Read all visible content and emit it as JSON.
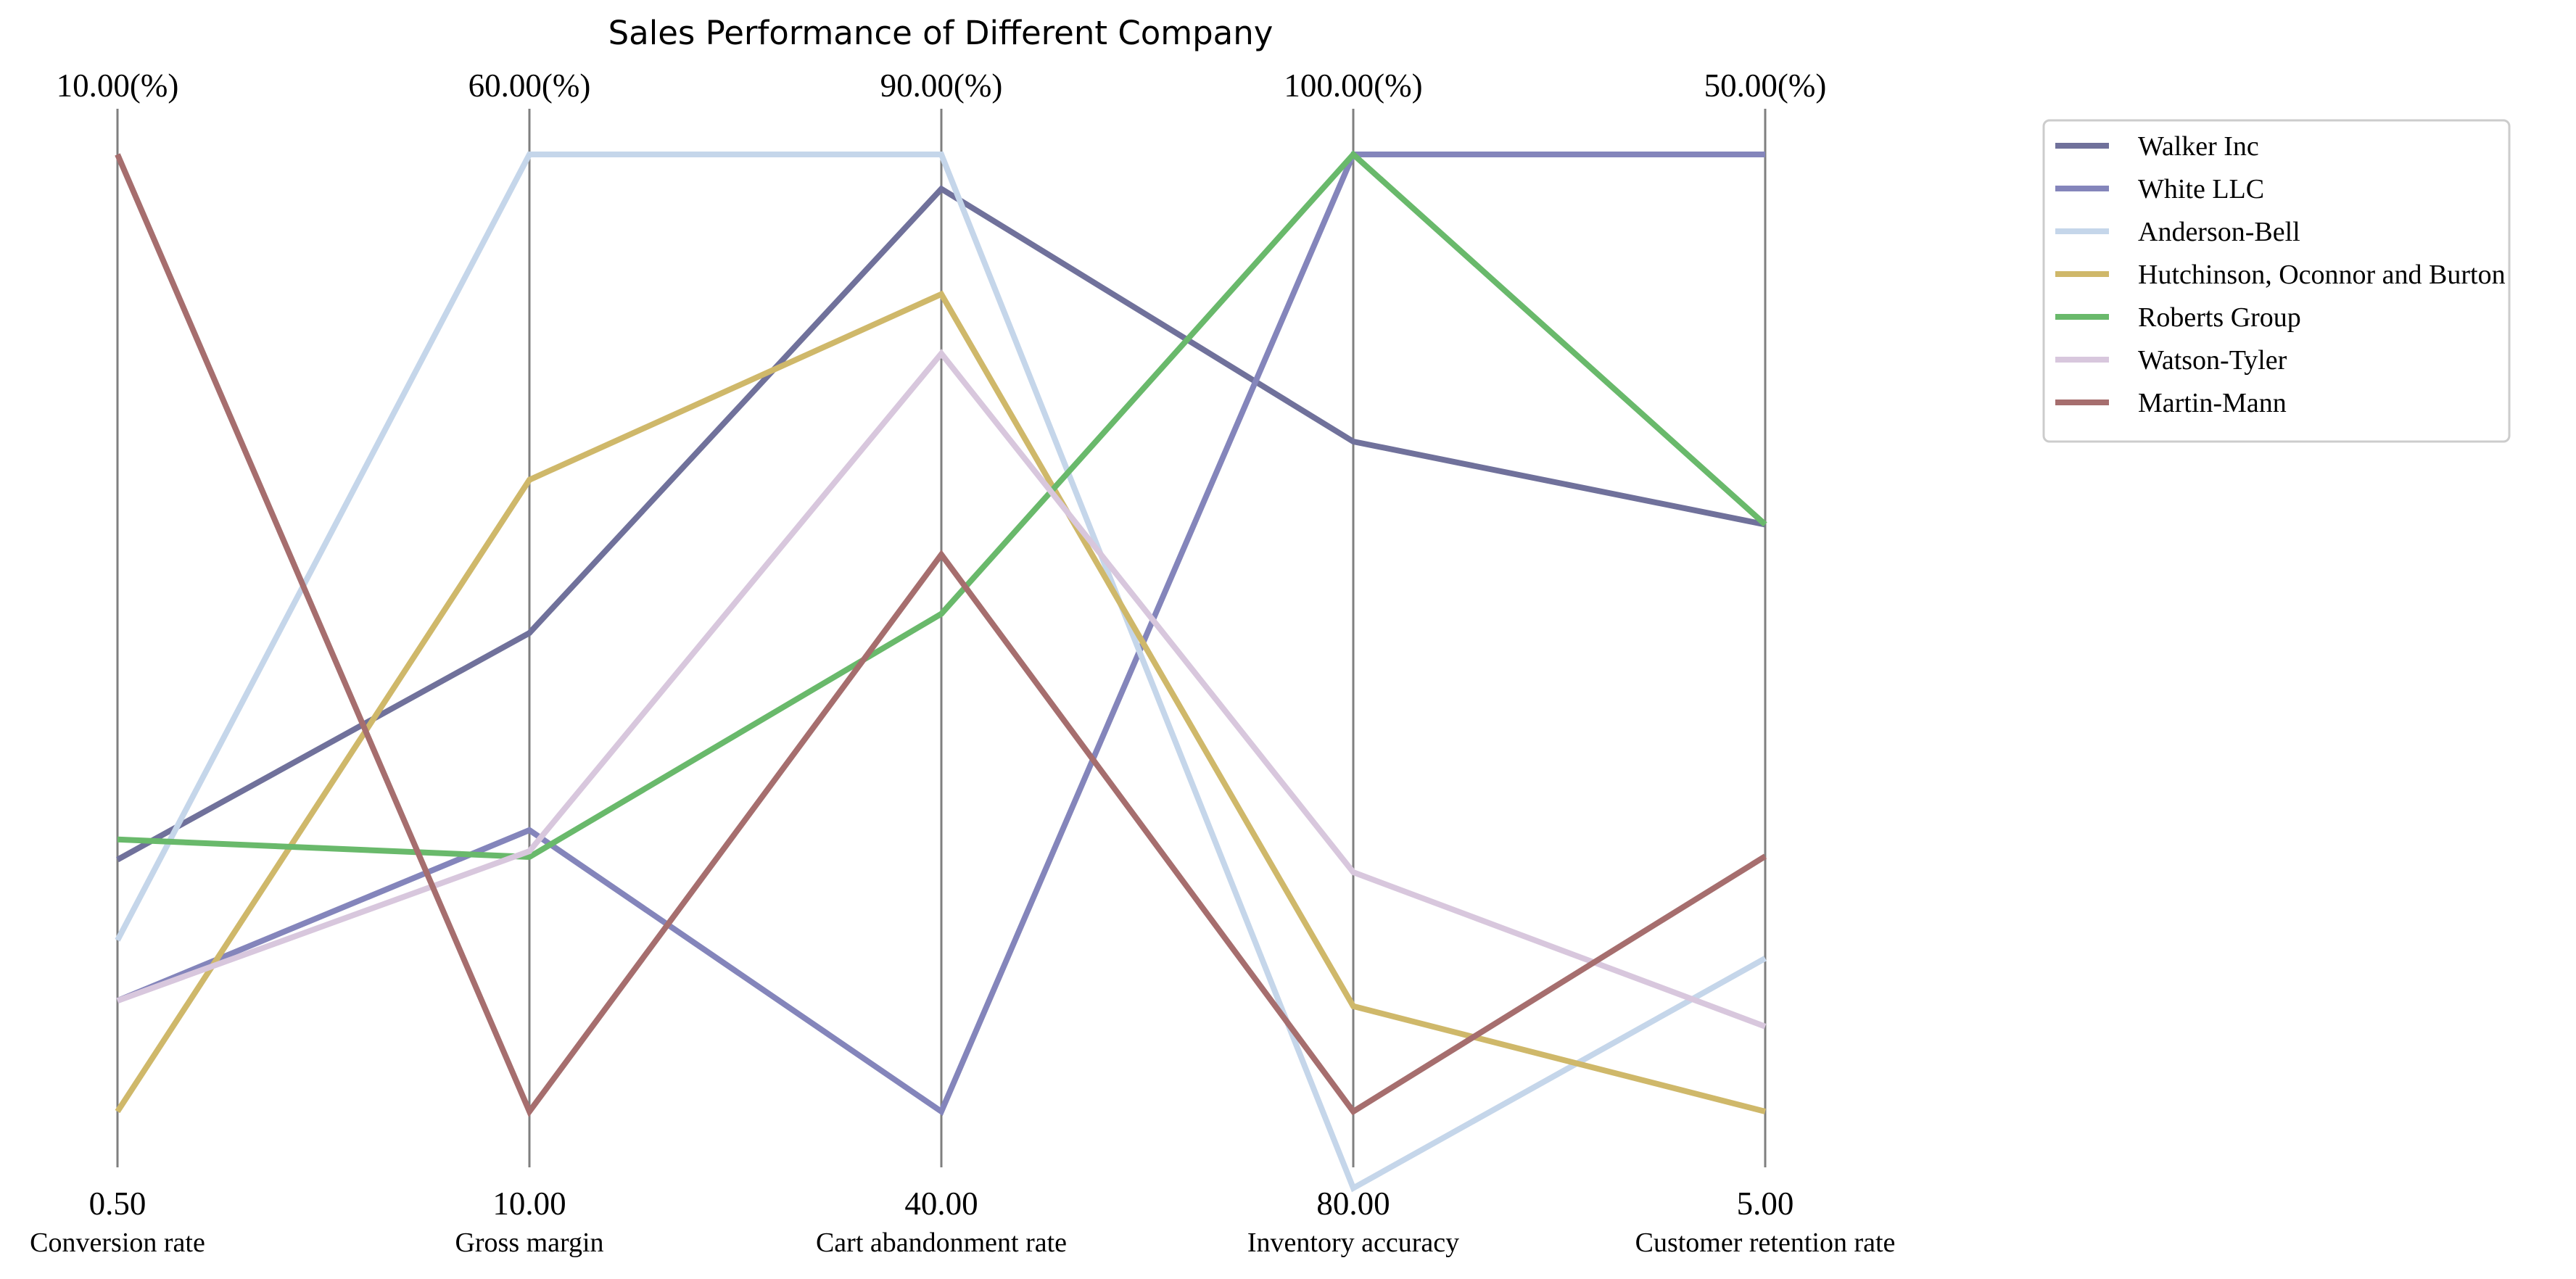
{
  "chart_data": {
    "type": "parallel-coordinates",
    "title": "Sales Performance of Different Company",
    "axes": [
      {
        "name": "Conversion rate",
        "min": 0.5,
        "max": 10.0,
        "min_label": "0.50",
        "max_label": "10.00(%)"
      },
      {
        "name": "Gross margin",
        "min": 10.0,
        "max": 60.0,
        "min_label": "10.00",
        "max_label": "60.00(%)"
      },
      {
        "name": "Cart abandonment rate",
        "min": 40.0,
        "max": 90.0,
        "min_label": "40.00",
        "max_label": "90.00(%)"
      },
      {
        "name": "Inventory accuracy",
        "min": 80.0,
        "max": 100.0,
        "min_label": "80.00",
        "max_label": "100.00(%)"
      },
      {
        "name": "Customer retention rate",
        "min": 5.0,
        "max": 50.0,
        "min_label": "5.00",
        "max_label": "50.00(%)"
      }
    ],
    "series": [
      {
        "name": "Walker Inc",
        "color": "#70719b",
        "values": [
          3.0,
          35.0,
          88.2,
          94.0,
          32.6
        ]
      },
      {
        "name": "White LLC",
        "color": "#8485bb",
        "values": [
          1.6,
          24.7,
          40.0,
          100.0,
          50.0
        ]
      },
      {
        "name": "Anderson-Bell",
        "color": "#c5d6ea",
        "values": [
          2.2,
          60.0,
          90.0,
          78.4,
          12.2
        ]
      },
      {
        "name": "Hutchinson, Oconnor and Burton",
        "color": "#cfb86a",
        "values": [
          0.5,
          43.0,
          82.7,
          82.2,
          5.0
        ]
      },
      {
        "name": "Roberts Group",
        "color": "#69b96b",
        "values": [
          3.2,
          23.3,
          66.0,
          100.0,
          32.6
        ]
      },
      {
        "name": "Watson-Tyler",
        "color": "#d8c7dd",
        "values": [
          1.6,
          23.6,
          79.6,
          85.0,
          9.0
        ]
      },
      {
        "name": "Martin-Mann",
        "color": "#a66e6e",
        "values": [
          10.0,
          10.0,
          69.1,
          80.0,
          17.0
        ]
      }
    ],
    "legend_position": "upper-right, outside plot"
  }
}
